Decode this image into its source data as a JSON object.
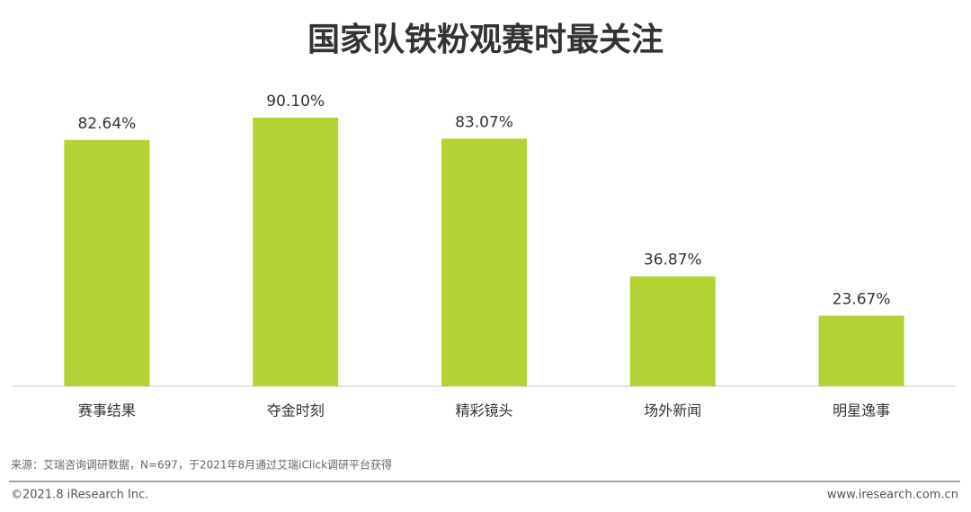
{
  "chart_data": {
    "type": "bar",
    "title": "国家队铁粉观赛时最关注",
    "categories": [
      "赛事结果",
      "夺金时刻",
      "精彩镜头",
      "场外新闻",
      "明星逸事"
    ],
    "values": [
      82.64,
      90.1,
      83.07,
      36.87,
      23.67
    ],
    "value_labels": [
      "82.64%",
      "90.10%",
      "83.07%",
      "36.87%",
      "23.67%"
    ],
    "color": "#b3d334"
  },
  "footer": {
    "source": "来源：艾瑞咨询调研数据，N=697，于2021年8月通过艾瑞iClick调研平台获得",
    "copyright": "©2021.8 iResearch Inc.",
    "website": "www.iresearch.com.cn"
  }
}
